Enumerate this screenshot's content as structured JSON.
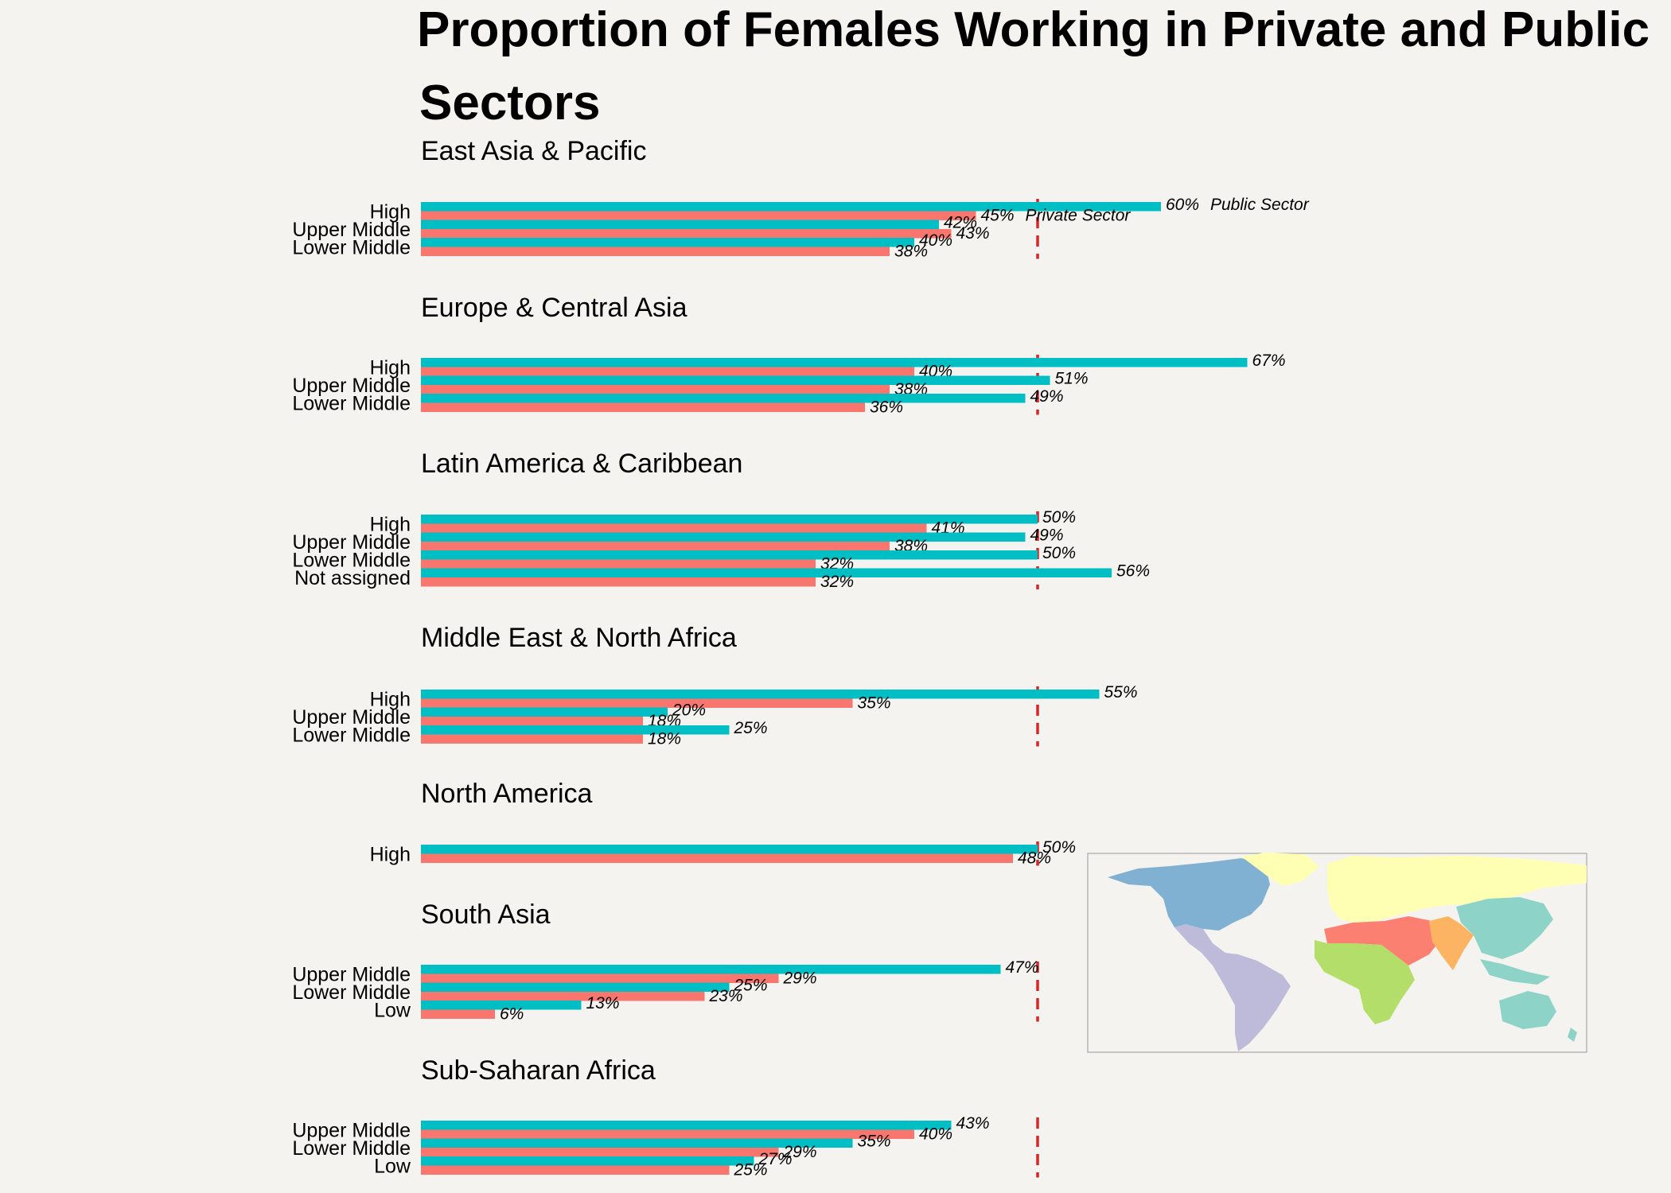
{
  "chart_data": {
    "type": "bar",
    "orientation": "horizontal",
    "title": "Proportion of Females Working in Private and Public Sectors",
    "value_unit": "%",
    "xlim": [
      0,
      100
    ],
    "reference_line": 50,
    "legend": [
      {
        "name": "Public Sector",
        "color": "#00bfc4"
      },
      {
        "name": "Private Sector",
        "color": "#f8766d"
      }
    ],
    "panels": [
      {
        "region": "East Asia & Pacific",
        "categories": [
          "High",
          "Upper Middle",
          "Lower Middle"
        ],
        "public": [
          60,
          42,
          40
        ],
        "private": [
          45,
          43,
          38
        ],
        "public_labels": [
          "60%",
          "42%",
          "40%"
        ],
        "private_labels": [
          "45%",
          "43%",
          "38%"
        ]
      },
      {
        "region": "Europe & Central Asia",
        "categories": [
          "High",
          "Upper Middle",
          "Lower Middle"
        ],
        "public": [
          67,
          51,
          49
        ],
        "private": [
          40,
          38,
          36
        ],
        "public_labels": [
          "67%",
          "51%",
          "49%"
        ],
        "private_labels": [
          "40%",
          "38%",
          "36%"
        ]
      },
      {
        "region": "Latin America & Caribbean",
        "categories": [
          "High",
          "Upper Middle",
          "Lower Middle",
          "Not assigned"
        ],
        "public": [
          50,
          49,
          50,
          56
        ],
        "private": [
          41,
          38,
          32,
          32
        ],
        "public_labels": [
          "50%",
          "49%",
          "50%",
          "56%"
        ],
        "private_labels": [
          "41%",
          "38%",
          "32%",
          "32%"
        ]
      },
      {
        "region": "Middle East & North Africa",
        "categories": [
          "High",
          "Upper Middle",
          "Lower Middle"
        ],
        "public": [
          55,
          20,
          25
        ],
        "private": [
          35,
          18,
          18
        ],
        "public_labels": [
          "55%",
          "20%",
          "25%"
        ],
        "private_labels": [
          "35%",
          "18%",
          "18%"
        ]
      },
      {
        "region": "North America",
        "categories": [
          "High"
        ],
        "public": [
          50
        ],
        "private": [
          48
        ],
        "public_labels": [
          "50%"
        ],
        "private_labels": [
          "48%"
        ]
      },
      {
        "region": "South Asia",
        "categories": [
          "Upper Middle",
          "Lower Middle",
          "Low"
        ],
        "public": [
          47,
          25,
          13
        ],
        "private": [
          29,
          23,
          6
        ],
        "public_labels": [
          "47%",
          "25%",
          "13%"
        ],
        "private_labels": [
          "29%",
          "23%",
          "6%"
        ]
      },
      {
        "region": "Sub-Saharan Africa",
        "categories": [
          "Upper Middle",
          "Lower Middle",
          "Low"
        ],
        "public": [
          43,
          35,
          27
        ],
        "private": [
          40,
          29,
          25
        ],
        "public_labels": [
          "43%",
          "35%",
          "27%"
        ],
        "private_labels": [
          "40%",
          "29%",
          "25%"
        ]
      }
    ],
    "map": {
      "regions": [
        {
          "name": "North America",
          "color": "#80b1d3"
        },
        {
          "name": "Latin America & Caribbean",
          "color": "#bebada"
        },
        {
          "name": "Europe & Central Asia",
          "color": "#ffffb3"
        },
        {
          "name": "Middle East & North Africa",
          "color": "#fb8072"
        },
        {
          "name": "Sub-Saharan Africa",
          "color": "#b3de69"
        },
        {
          "name": "South Asia",
          "color": "#fdb462"
        },
        {
          "name": "East Asia & Pacific",
          "color": "#8dd3c7"
        }
      ]
    }
  }
}
